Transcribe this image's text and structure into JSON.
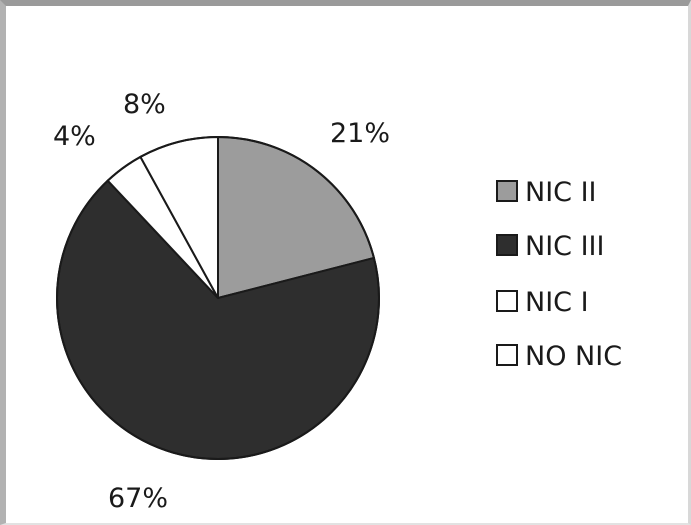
{
  "chart_data": {
    "type": "pie",
    "title": "",
    "start_angle_deg": 0,
    "direction": "clockwise",
    "legend_position": "right",
    "slices": [
      {
        "name": "NIC II",
        "value": 21,
        "label": "21%",
        "color": "#9c9c9c"
      },
      {
        "name": "NIC III",
        "value": 67,
        "label": "67%",
        "color": "#2e2e2e"
      },
      {
        "name": "NIC I",
        "value": 4,
        "label": "4%",
        "color": "#ffffff"
      },
      {
        "name": "NO NIC",
        "value": 8,
        "label": "8%",
        "color": "#ffffff"
      }
    ]
  }
}
